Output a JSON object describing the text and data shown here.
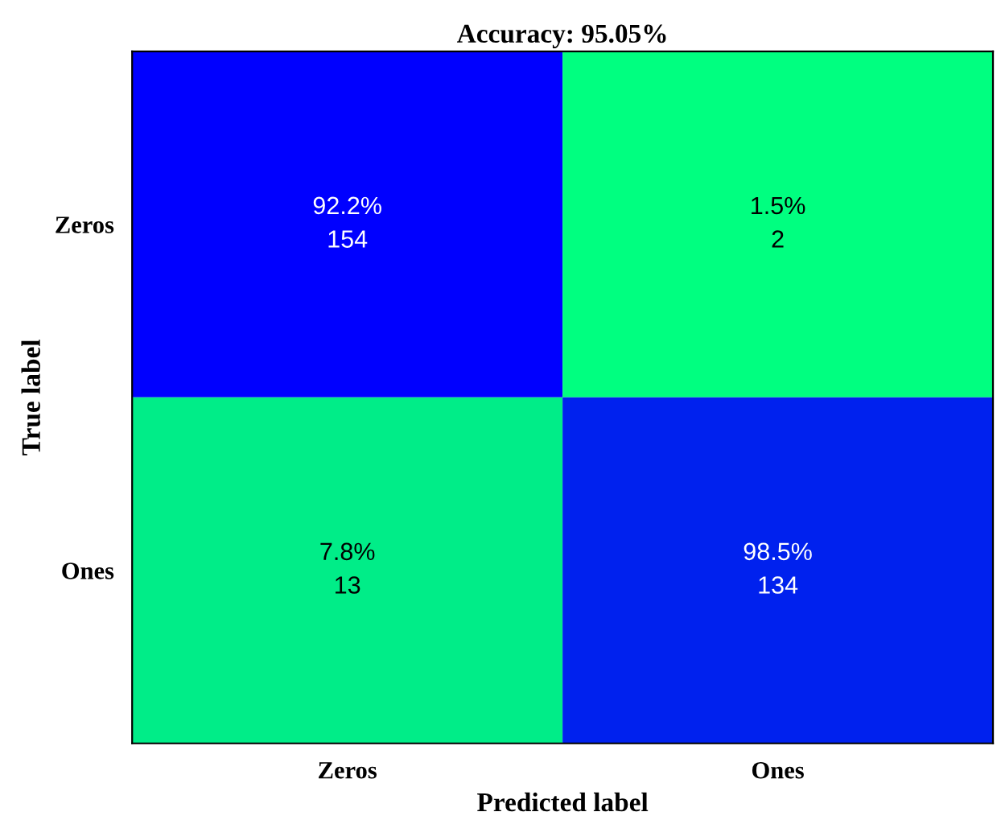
{
  "chart_data": {
    "type": "heatmap",
    "title": "Accuracy: 95.05%",
    "xlabel": "Predicted label",
    "ylabel": "True label",
    "categories": [
      "Zeros",
      "Ones"
    ],
    "y_categories": [
      "Zeros",
      "Ones"
    ],
    "cells": [
      [
        154,
        2
      ],
      [
        13,
        134
      ]
    ],
    "data_labels": true,
    "annotations": [
      "92.2%",
      "1.5%",
      "7.8%",
      "98.5%"
    ]
  }
}
